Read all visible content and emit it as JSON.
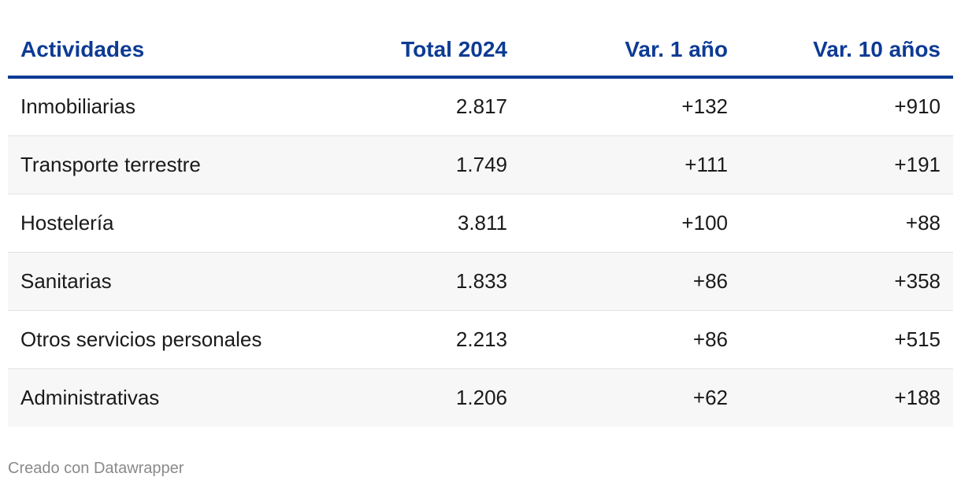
{
  "chart_data": {
    "type": "table",
    "columns": [
      "Actividades",
      "Total 2024",
      "Var. 1 año",
      "Var. 10 años"
    ],
    "rows": [
      [
        "Inmobiliarias",
        "2.817",
        "+132",
        "+910"
      ],
      [
        "Transporte terrestre",
        "1.749",
        "+111",
        "+191"
      ],
      [
        "Hostelería",
        "3.811",
        "+100",
        "+88"
      ],
      [
        "Sanitarias",
        "1.833",
        "+86",
        "+358"
      ],
      [
        "Otros servicios personales",
        "2.213",
        "+86",
        "+515"
      ],
      [
        "Administrativas",
        "1.206",
        "+62",
        "+188"
      ]
    ]
  },
  "footer": {
    "credit": "Creado con Datawrapper"
  },
  "colors": {
    "header_text": "#0d3b94",
    "header_rule": "#0d3b94",
    "stripe": "#f7f7f7"
  }
}
